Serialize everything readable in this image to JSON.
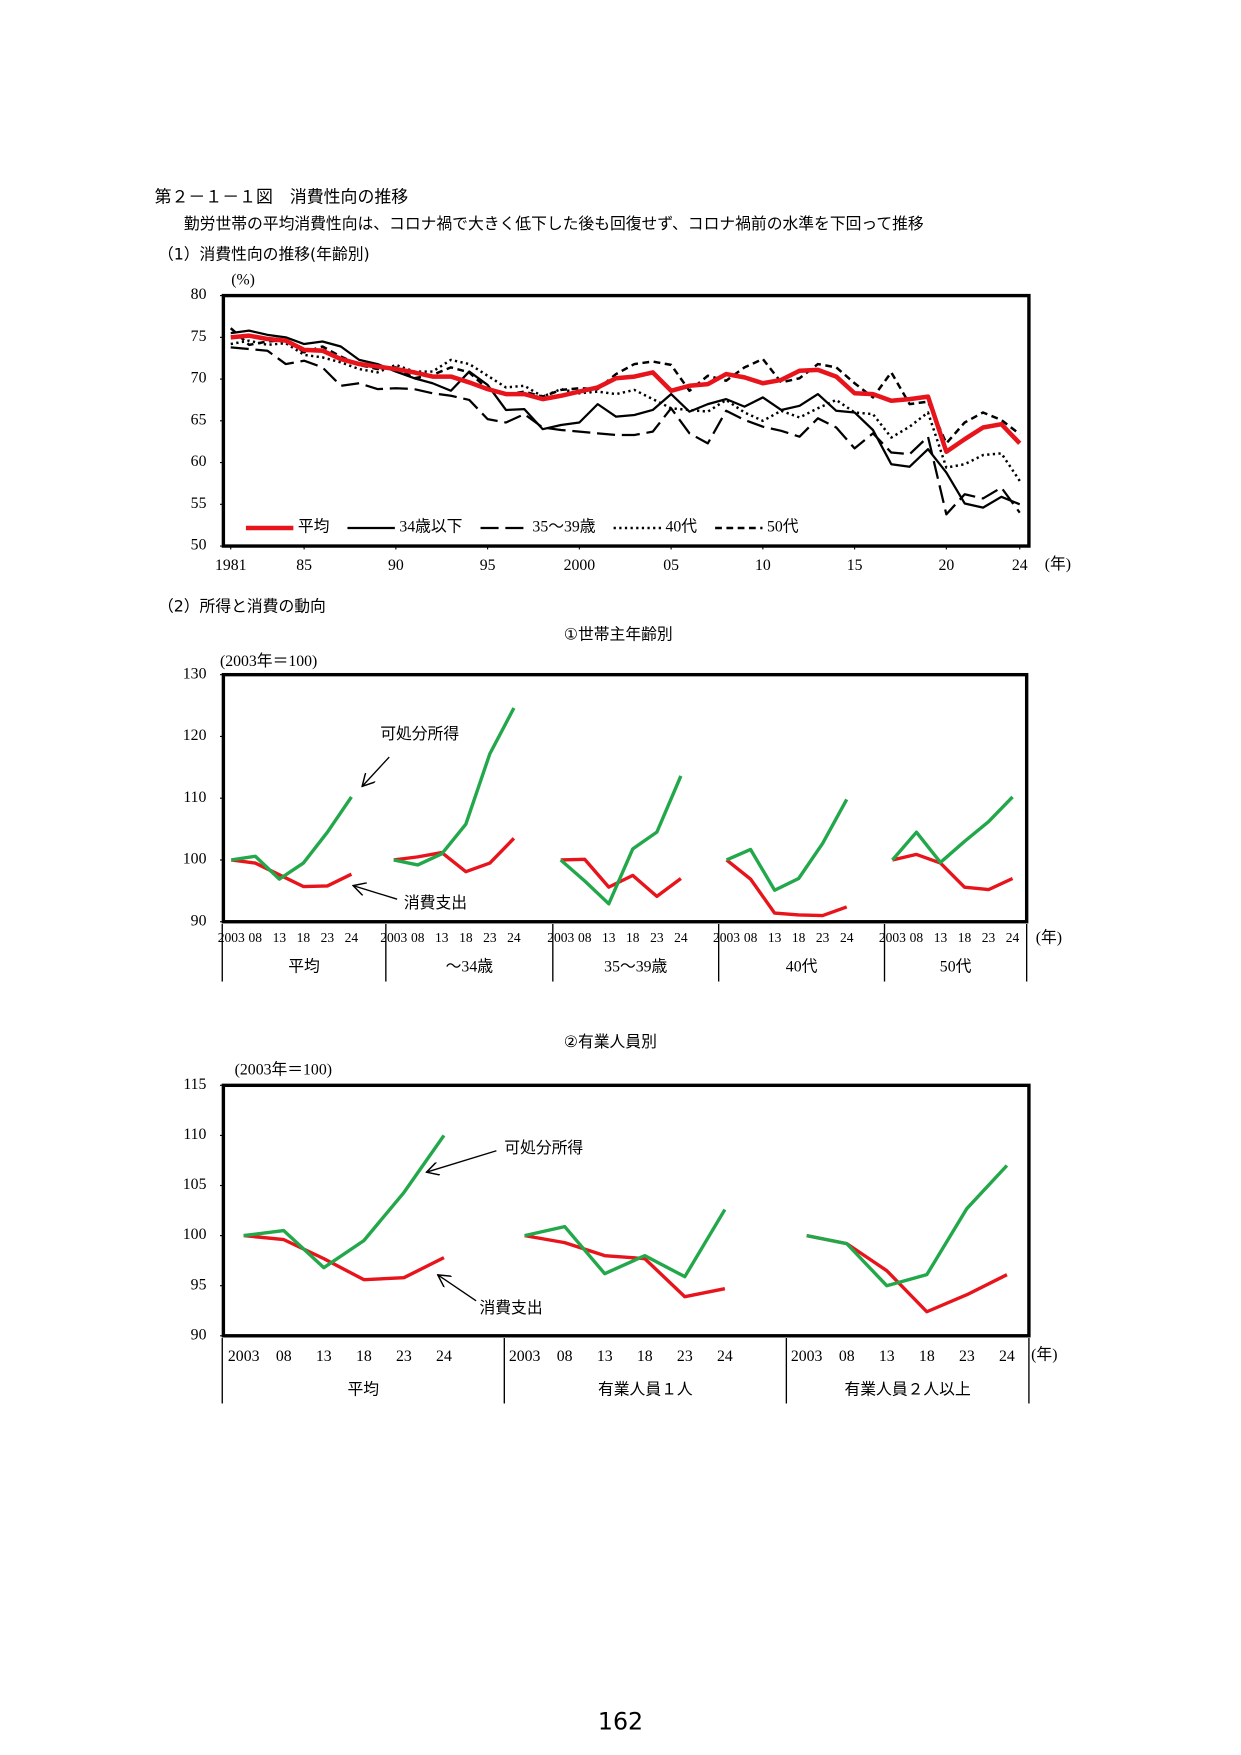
{
  "header": {
    "title": "第２－１－１図　消費性向の推移",
    "subtitle": "勤労世帯の平均消費性向は、コロナ禍で大きく低下した後も回復せず、コロナ禍前の水準を下回って推移",
    "section_1": "（1）消費性向の推移(年齢別)",
    "section_2": "（2）所得と消費の動向"
  },
  "chart_data": [
    {
      "type": "line",
      "y_unit": "(%)",
      "x_unit": "(年)",
      "x": [
        1981,
        1982,
        1983,
        1984,
        1985,
        1986,
        1987,
        1988,
        1989,
        1990,
        1991,
        1992,
        1993,
        1994,
        1995,
        1996,
        1997,
        1998,
        1999,
        2000,
        2001,
        2002,
        2003,
        2004,
        2005,
        2006,
        2007,
        2008,
        2009,
        2010,
        2011,
        2012,
        2013,
        2014,
        2015,
        2016,
        2017,
        2018,
        2019,
        2020,
        2021,
        2022,
        2023,
        2024
      ],
      "xlim": [
        1980.6,
        2024.5
      ],
      "xticks": [
        1981,
        {
          "value": 1985,
          "label": "85"
        },
        {
          "value": 1990,
          "label": "90"
        },
        {
          "value": 1995,
          "label": "95"
        },
        2000,
        {
          "value": 2005,
          "label": "05"
        },
        {
          "value": 2010,
          "label": "10"
        },
        {
          "value": 2015,
          "label": "15"
        },
        {
          "value": 2020,
          "label": "20"
        },
        {
          "value": 2024,
          "label": "24"
        }
      ],
      "ylim": [
        50,
        80
      ],
      "yticks": [
        50,
        55,
        60,
        65,
        70,
        75,
        80
      ],
      "grid": false,
      "legend": "lower left",
      "series": [
        {
          "name": "平均",
          "color": "#e8141c",
          "linestyle": "solid",
          "values": [
            75.0,
            75.2,
            74.8,
            74.6,
            73.5,
            73.4,
            72.4,
            71.8,
            71.5,
            71.2,
            70.8,
            70.3,
            70.3,
            69.6,
            68.8,
            68.2,
            68.2,
            67.6,
            68.0,
            68.5,
            69.0,
            70.1,
            70.3,
            70.8,
            68.6,
            69.2,
            69.4,
            70.6,
            70.2,
            69.5,
            69.9,
            71.0,
            71.1,
            70.3,
            68.3,
            68.2,
            67.4,
            67.6,
            67.9,
            61.3,
            62.8,
            64.2,
            64.6,
            62.3
          ]
        },
        {
          "name": "34歳以下",
          "color": "#000000",
          "linestyle": "solid",
          "values": [
            75.5,
            75.8,
            75.3,
            75.0,
            74.2,
            74.5,
            73.9,
            72.3,
            71.8,
            70.9,
            70.1,
            69.5,
            68.6,
            70.9,
            69.3,
            66.3,
            66.4,
            64.0,
            64.5,
            64.8,
            67.0,
            65.5,
            65.7,
            66.3,
            68.2,
            66.1,
            67.0,
            67.6,
            66.7,
            67.8,
            66.3,
            66.8,
            68.2,
            66.2,
            66.0,
            63.9,
            59.8,
            59.5,
            61.6,
            58.8,
            55.1,
            54.6,
            55.9,
            55.0
          ]
        },
        {
          "name": "35～39歳",
          "color": "#000000",
          "linestyle": "longdash",
          "values": [
            73.8,
            73.6,
            73.4,
            71.8,
            72.2,
            71.4,
            69.2,
            69.5,
            68.8,
            68.9,
            68.8,
            68.3,
            68.0,
            67.5,
            65.2,
            64.8,
            65.8,
            64.2,
            63.9,
            63.7,
            63.5,
            63.3,
            63.3,
            63.7,
            66.5,
            63.5,
            62.3,
            66.2,
            65.1,
            64.3,
            63.8,
            63.1,
            65.3,
            64.2,
            61.7,
            63.5,
            61.2,
            61.0,
            63.1,
            53.8,
            56.2,
            55.7,
            57.0,
            54.0
          ]
        },
        {
          "name": "40代",
          "color": "#000000",
          "linestyle": "dotted",
          "values": [
            74.2,
            74.6,
            74.1,
            74.3,
            72.9,
            72.6,
            72.0,
            71.2,
            70.8,
            71.7,
            70.9,
            70.9,
            72.3,
            71.8,
            70.4,
            69.0,
            69.2,
            67.9,
            68.8,
            68.3,
            68.5,
            68.2,
            68.7,
            67.6,
            66.5,
            66.3,
            66.1,
            67.5,
            66.0,
            65.0,
            66.2,
            65.4,
            66.5,
            67.5,
            66.0,
            65.8,
            63.0,
            64.3,
            66.0,
            59.4,
            59.8,
            60.9,
            61.1,
            57.8
          ]
        },
        {
          "name": "50代",
          "color": "#000000",
          "linestyle": "dashed",
          "values": [
            76.1,
            74.1,
            74.5,
            74.7,
            73.2,
            73.9,
            72.7,
            71.7,
            71.2,
            71.4,
            70.1,
            70.5,
            71.4,
            70.8,
            68.8,
            68.1,
            68.5,
            67.9,
            68.7,
            68.9,
            68.8,
            70.6,
            71.8,
            72.1,
            71.7,
            68.6,
            70.4,
            69.8,
            71.4,
            72.4,
            69.6,
            70.1,
            71.8,
            71.4,
            69.5,
            67.8,
            70.8,
            67.0,
            67.3,
            62.3,
            64.8,
            66.0,
            65.1,
            63.4
          ]
        }
      ]
    },
    {
      "type": "panel-line",
      "title": "①世帯主年齢別",
      "y_unit": "(2003年＝100)",
      "x_unit": "(年)",
      "categories": [
        "2003",
        "08",
        "13",
        "18",
        "23",
        "24"
      ],
      "panels": [
        "平均",
        "～34歳",
        "35～39歳",
        "40代",
        "50代"
      ],
      "ylim": [
        90,
        130
      ],
      "yticks": [
        90,
        100,
        110,
        120,
        130
      ],
      "series": [
        {
          "name": "可処分所得",
          "color": "#22a84a",
          "values": [
            [
              100,
              100.6,
              96.9,
              99.5,
              104.5,
              110.2
            ],
            [
              100,
              99.2,
              101.0,
              105.8,
              117.2,
              124.6
            ],
            [
              100,
              96.6,
              92.9,
              101.8,
              104.5,
              113.6
            ],
            [
              100,
              101.7,
              95.1,
              97.0,
              102.7,
              109.8
            ],
            [
              100,
              104.5,
              99.6,
              103.0,
              106.2,
              110.2
            ]
          ]
        },
        {
          "name": "消費支出",
          "color": "#e8141c",
          "values": [
            [
              100,
              99.5,
              97.6,
              95.7,
              95.8,
              97.7
            ],
            [
              100,
              100.5,
              101.2,
              98.1,
              99.5,
              103.5
            ],
            [
              100,
              100.1,
              95.6,
              97.5,
              94.1,
              97.0
            ],
            [
              100,
              96.9,
              91.4,
              91.1,
              91.0,
              92.4
            ],
            [
              100,
              100.9,
              99.5,
              95.6,
              95.2,
              97.0
            ]
          ]
        }
      ]
    },
    {
      "type": "panel-line",
      "title": "②有業人員別",
      "y_unit": "(2003年＝100)",
      "x_unit": "(年)",
      "categories": [
        "2003",
        "08",
        "13",
        "18",
        "23",
        "24"
      ],
      "panels": [
        "平均",
        "有業人員１人",
        "有業人員２人以上"
      ],
      "ylim": [
        90,
        115
      ],
      "yticks": [
        90,
        95,
        100,
        105,
        110,
        115
      ],
      "series": [
        {
          "name": "可処分所得",
          "color": "#22a84a",
          "values": [
            [
              100,
              100.5,
              96.8,
              99.5,
              104.3,
              110.0
            ],
            [
              100,
              100.9,
              96.2,
              98.0,
              95.9,
              102.6
            ],
            [
              100,
              99.2,
              95.0,
              96.1,
              102.7,
              107.0
            ]
          ]
        },
        {
          "name": "消費支出",
          "color": "#e8141c",
          "values": [
            [
              100,
              99.6,
              97.7,
              95.6,
              95.8,
              97.8
            ],
            [
              100,
              99.3,
              98.0,
              97.7,
              93.9,
              94.7
            ],
            [
              100,
              99.2,
              96.5,
              92.4,
              94.1,
              96.1
            ]
          ]
        }
      ]
    }
  ],
  "page_number": "162"
}
